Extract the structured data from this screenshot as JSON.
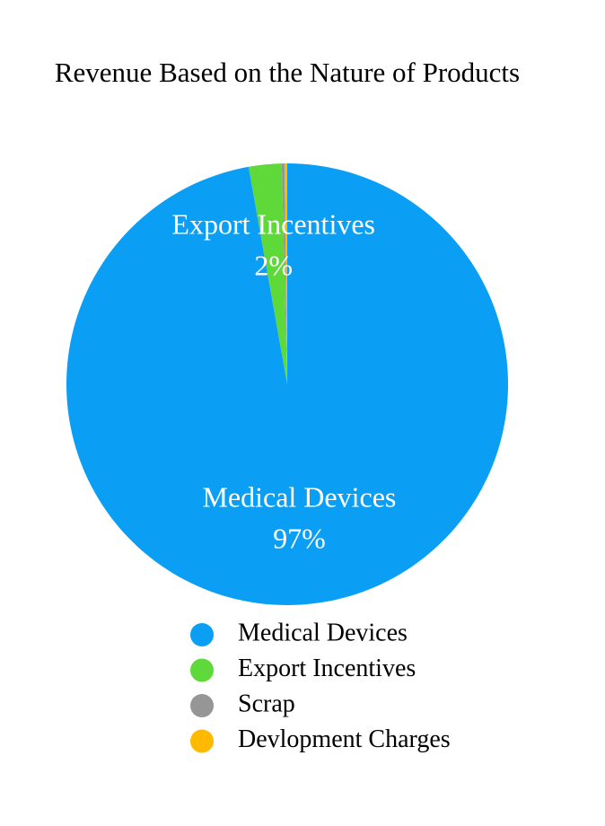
{
  "chart_data": {
    "type": "pie",
    "title": "Revenue Based on the Nature of Products",
    "categories": [
      "Medical Devices",
      "Export Incentives",
      "Scrap",
      "Devlopment Charges"
    ],
    "values": [
      97.2,
      2.4,
      0.2,
      0.2
    ],
    "value_labels": [
      "97%",
      "2%",
      null,
      null
    ],
    "colors": [
      "#0a9ff5",
      "#5fd83a",
      "#969696",
      "#ffba00"
    ]
  }
}
